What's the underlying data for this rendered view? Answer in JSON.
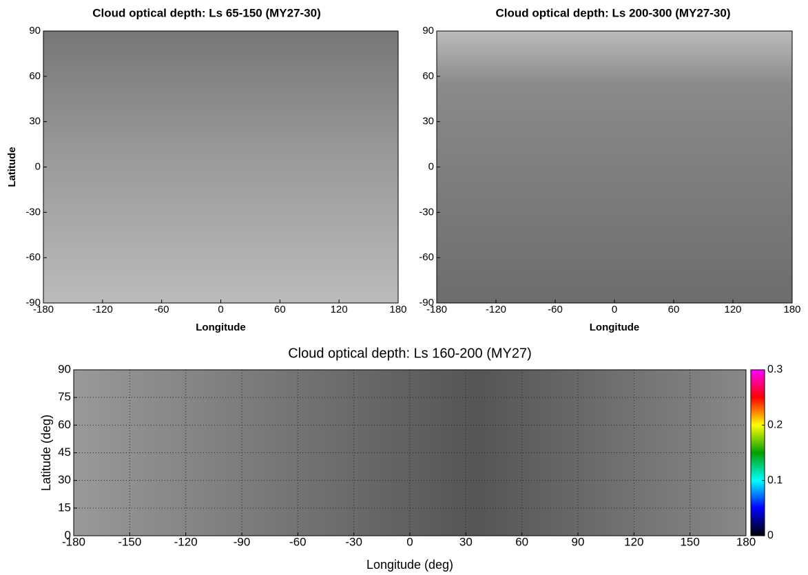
{
  "chart_data": [
    {
      "type": "map",
      "title": "Cloud optical depth: Ls 65-150 (MY27-30)",
      "xlabel": "Longitude",
      "ylabel": "Latitude",
      "xlim": [
        -180,
        180
      ],
      "ylim": [
        -90,
        90
      ],
      "xticks": [
        -180,
        -120,
        -60,
        0,
        60,
        120,
        180
      ],
      "yticks": [
        -90,
        -60,
        -30,
        0,
        30,
        60,
        90
      ],
      "grid": false
    },
    {
      "type": "map",
      "title": "Cloud optical depth: Ls 200-300 (MY27-30)",
      "xlabel": "Longitude",
      "xlim": [
        -180,
        180
      ],
      "ylim": [
        -90,
        90
      ],
      "xticks": [
        -180,
        -120,
        -60,
        0,
        60,
        120,
        180
      ],
      "yticks": [
        -90,
        -60,
        -30,
        0,
        30,
        60,
        90
      ],
      "grid": false
    },
    {
      "type": "map",
      "title": "Cloud optical depth: Ls 160-200 (MY27)",
      "xlabel": "Longitude (deg)",
      "ylabel": "Latitude (deg)",
      "xlim": [
        -180,
        180
      ],
      "ylim": [
        0,
        90
      ],
      "xticks": [
        -180,
        -150,
        -120,
        -90,
        -60,
        -30,
        0,
        30,
        60,
        90,
        120,
        150,
        180
      ],
      "yticks": [
        0,
        15,
        30,
        45,
        60,
        75,
        90
      ],
      "grid": true,
      "colorbar": {
        "clim": [
          0,
          0.3
        ],
        "ticks": [
          0,
          0.1,
          0.2,
          0.3
        ],
        "colormap": [
          "#000000",
          "#0000ff",
          "#00ffff",
          "#00a000",
          "#ffff00",
          "#ff0000",
          "#ff00ff"
        ]
      }
    }
  ]
}
